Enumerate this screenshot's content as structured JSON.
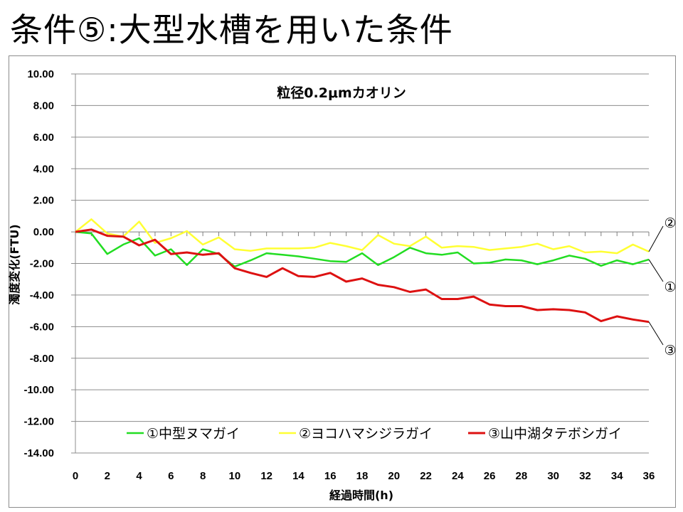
{
  "slide": {
    "title": "条件⑤:大型水槽を用いた条件"
  },
  "chart_data": {
    "type": "line",
    "title": "粒径0.2μmカオリン",
    "xlabel": "経過時間(h)",
    "ylabel": "濁度変化(FTU)",
    "xlim": [
      0,
      36
    ],
    "ylim": [
      -14,
      10
    ],
    "x_ticks": [
      "0",
      "2",
      "4",
      "6",
      "8",
      "10",
      "12",
      "14",
      "16",
      "18",
      "20",
      "22",
      "24",
      "26",
      "28",
      "30",
      "32",
      "34",
      "36"
    ],
    "y_ticks": [
      "10.00",
      "8.00",
      "6.00",
      "4.00",
      "2.00",
      "0.00",
      "-2.00",
      "-4.00",
      "-6.00",
      "-8.00",
      "-10.00",
      "-12.00",
      "-14.00"
    ],
    "grid": "horizontal",
    "legend_position": "bottom",
    "x": [
      0,
      1,
      2,
      3,
      4,
      5,
      6,
      7,
      8,
      9,
      10,
      11,
      12,
      13,
      14,
      15,
      16,
      17,
      18,
      19,
      20,
      21,
      22,
      23,
      24,
      25,
      26,
      27,
      28,
      29,
      30,
      31,
      32,
      33,
      34,
      35,
      36
    ],
    "series": [
      {
        "name": "①中型ヌマガイ",
        "color": "#22dd22",
        "values": [
          0,
          -0.1,
          -1.4,
          -0.8,
          -0.4,
          -1.5,
          -1.1,
          -2.1,
          -1.1,
          -1.4,
          -2.2,
          -1.8,
          -1.35,
          -1.45,
          -1.55,
          -1.7,
          -1.85,
          -1.9,
          -1.35,
          -2.1,
          -1.6,
          -1.0,
          -1.35,
          -1.45,
          -1.3,
          -2.0,
          -1.95,
          -1.75,
          -1.8,
          -2.05,
          -1.8,
          -1.5,
          -1.7,
          -2.15,
          -1.8,
          -2.05,
          -1.75
        ]
      },
      {
        "name": "②ヨコハマシジラガイ",
        "color": "#ffff33",
        "values": [
          0,
          0.8,
          -0.1,
          -0.3,
          0.65,
          -0.7,
          -0.4,
          0.05,
          -0.8,
          -0.35,
          -1.1,
          -1.2,
          -1.05,
          -1.05,
          -1.05,
          -1.0,
          -0.7,
          -0.9,
          -1.15,
          -0.2,
          -0.75,
          -0.9,
          -0.3,
          -1.0,
          -0.9,
          -0.95,
          -1.15,
          -1.05,
          -0.95,
          -0.75,
          -1.1,
          -0.9,
          -1.3,
          -1.25,
          -1.35,
          -0.8,
          -1.25
        ]
      },
      {
        "name": "③山中湖タテボシガイ",
        "color": "#dd1111",
        "values": [
          0,
          0.15,
          -0.25,
          -0.3,
          -0.85,
          -0.5,
          -1.4,
          -1.3,
          -1.45,
          -1.35,
          -2.3,
          -2.6,
          -2.85,
          -2.3,
          -2.8,
          -2.85,
          -2.6,
          -3.15,
          -2.95,
          -3.35,
          -3.5,
          -3.8,
          -3.65,
          -4.25,
          -4.25,
          -4.1,
          -4.6,
          -4.7,
          -4.7,
          -4.95,
          -4.9,
          -4.95,
          -5.1,
          -5.65,
          -5.35,
          -5.55,
          -5.7
        ]
      }
    ],
    "annotations": [
      {
        "label": "②",
        "series": "②ヨコハマシジラガイ"
      },
      {
        "label": "①",
        "series": "①中型ヌマガイ"
      },
      {
        "label": "③",
        "series": "③山中湖タテボシガイ"
      }
    ]
  }
}
